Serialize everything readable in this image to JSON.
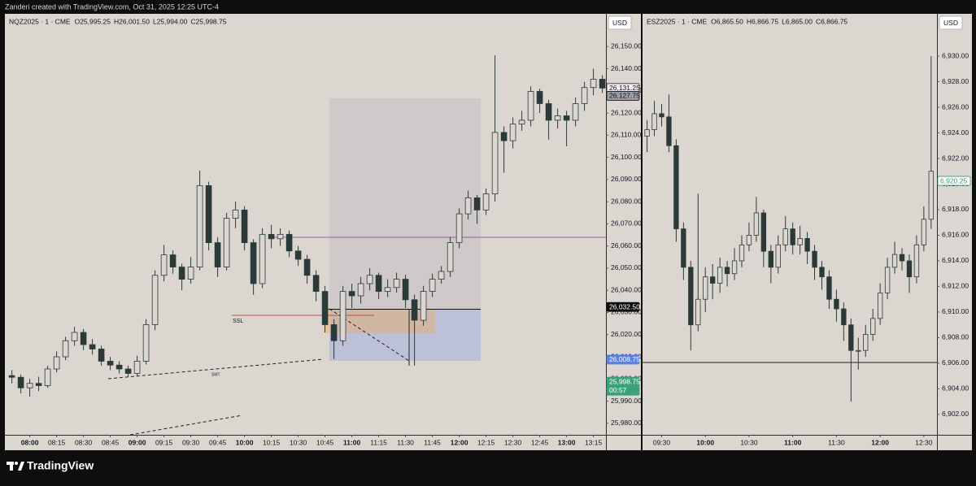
{
  "header": {
    "text": "Zanderi created with TradingView.com, Oct 31, 2025 12:25 UTC-4"
  },
  "footer": {
    "brand": "TradingView"
  },
  "chart_data": [
    {
      "type": "candlestick",
      "title": "NQZ2025 · 1 · CME",
      "ohlc_legend": [
        "O25,995.25",
        "H26,001.50",
        "L25,994.00",
        "C25,998.75"
      ],
      "currency": "USD",
      "up_color": "#dcd6d1",
      "down_color": "#2b3a39",
      "x": [
        "07:50",
        "07:55",
        "08:00",
        "08:05",
        "08:10",
        "08:15",
        "08:20",
        "08:25",
        "08:30",
        "08:35",
        "08:40",
        "08:45",
        "08:50",
        "08:55",
        "09:00",
        "09:05",
        "09:10",
        "09:15",
        "09:20",
        "09:25",
        "09:30",
        "09:35",
        "09:40",
        "09:45",
        "09:50",
        "09:55",
        "10:00",
        "10:05",
        "10:10",
        "10:15",
        "10:20",
        "10:25",
        "10:30",
        "10:35",
        "10:40",
        "10:45",
        "10:50",
        "10:55",
        "11:00",
        "11:05",
        "11:10",
        "11:15",
        "11:20",
        "11:25",
        "11:30",
        "11:35",
        "11:40",
        "11:45",
        "11:50",
        "11:55",
        "12:00",
        "12:05",
        "12:10",
        "12:15",
        "12:20",
        "12:25",
        "12:30",
        "12:35",
        "12:40",
        "12:45",
        "12:50",
        "12:55",
        "13:00",
        "13:05",
        "13:10",
        "13:15",
        "13:20"
      ],
      "open": [
        26001.5,
        26000.75,
        25996,
        25998,
        25997,
        26004.5,
        26010,
        26017.25,
        26021,
        26015.5,
        26013.5,
        26008,
        26006.25,
        26004.5,
        26002.5,
        26008,
        26024.5,
        26046.75,
        26056,
        26050.5,
        26045,
        26050.5,
        26087.25,
        26061.5,
        26050.5,
        26072.5,
        26076.25,
        26061.5,
        26043,
        26065.25,
        26063.25,
        26065.25,
        26057.75,
        26054,
        26046.75,
        26039.5,
        26024.5,
        26017.25,
        26039.5,
        26037.5,
        26043,
        26046.75,
        26039.5,
        26041.25,
        26045,
        26035.75,
        26026.5,
        26039.5,
        26045,
        26048.5,
        26061.5,
        26074.5,
        26081.75,
        26076.25,
        26083.5,
        26111.25,
        26107.5,
        26115,
        26116.75,
        26129.75,
        26124.25,
        26116.75,
        26118.75,
        26116.75,
        26124.25,
        26131.5,
        26135.25
      ],
      "high": [
        26004,
        26002,
        26000,
        26001,
        26006,
        26012.5,
        26019,
        26023.5,
        26022.5,
        26018,
        26015,
        26010,
        26008,
        26006,
        26010.5,
        26027,
        26049,
        26060.5,
        26058,
        26052,
        26055,
        26094,
        26089,
        26064,
        26075,
        26080,
        26078,
        26063,
        26068,
        26069.5,
        26068,
        26067,
        26060,
        26056,
        26049,
        26042,
        26027,
        26042,
        26043,
        26046,
        26050,
        26048,
        26045,
        26048,
        26047,
        26038,
        26042,
        26047.5,
        26051,
        26064,
        26077,
        26085,
        26083,
        26086,
        26146,
        26114,
        26118,
        26121,
        26132,
        26131,
        26126,
        26122,
        26121,
        26127,
        26134,
        26140,
        26137
      ],
      "low": [
        25998,
        25993.5,
        25992,
        25994.5,
        25996,
        26003,
        26008.5,
        26015,
        26013,
        26011,
        26006,
        26004,
        26002.5,
        26001,
        26001.5,
        26006.5,
        26022,
        26044,
        26047.5,
        26040,
        26043,
        26049,
        26058,
        26046,
        26049,
        26068,
        26058,
        26038,
        26041,
        26059,
        26060,
        26055,
        26051,
        26043,
        26035,
        26021,
        26009,
        26015,
        26032,
        26034,
        26040,
        26036,
        26037,
        26039,
        26032,
        26006,
        26024,
        26037,
        26043,
        26046,
        26059,
        26072,
        26070,
        26074,
        26080,
        26093,
        26104,
        26112,
        26114,
        26120,
        26108,
        26113,
        26105,
        26114,
        26121,
        26128,
        26129
      ],
      "close": [
        26000.75,
        25996,
        25998,
        25997,
        26004.5,
        26010,
        26017.25,
        26021,
        26015.5,
        26013.5,
        26008,
        26006.25,
        26004.5,
        26002.5,
        26008,
        26024.5,
        26046.75,
        26056,
        26050.5,
        26045,
        26050.5,
        26087.25,
        26061.5,
        26050.5,
        26072.5,
        26076.25,
        26061.5,
        26043,
        26065.25,
        26063.25,
        26065.25,
        26057.75,
        26054,
        26046.75,
        26039.5,
        26024.5,
        26017.25,
        26039.5,
        26037.5,
        26043,
        26046.75,
        26039.5,
        26041.25,
        26045,
        26035.75,
        26026.5,
        26039.5,
        26045,
        26048.5,
        26061.5,
        26074.5,
        26081.75,
        26076.25,
        26083.5,
        26111.25,
        26107.5,
        26115,
        26116.75,
        26129.75,
        26124.25,
        26116.75,
        26118.75,
        26116.75,
        26124.25,
        26131.5,
        26135.25,
        26131.25
      ],
      "xlim": [
        "07:47",
        "13:22"
      ],
      "xticks": [
        "08:00",
        "08:15",
        "08:30",
        "08:45",
        "09:00",
        "09:15",
        "09:30",
        "09:45",
        "10:00",
        "10:15",
        "10:30",
        "10:45",
        "11:00",
        "11:15",
        "11:30",
        "11:45",
        "12:00",
        "12:15",
        "12:30",
        "12:45",
        "13:00",
        "13:15"
      ],
      "ylim": [
        25974.8,
        26164.4
      ],
      "yticks": [
        {
          "value": 25980,
          "label": "25,980.00"
        },
        {
          "value": 25990,
          "label": "25,990.00"
        },
        {
          "value": 26000,
          "label": "26,000.00"
        },
        {
          "value": 26010,
          "label": "26,010.00"
        },
        {
          "value": 26020,
          "label": "26,020.00"
        },
        {
          "value": 26030,
          "label": "26,030.00"
        },
        {
          "value": 26040,
          "label": "26,040.00"
        },
        {
          "value": 26050,
          "label": "26,050.00"
        },
        {
          "value": 26060,
          "label": "26,060.00"
        },
        {
          "value": 26070,
          "label": "26,070.00"
        },
        {
          "value": 26080,
          "label": "26,080.00"
        },
        {
          "value": 26090,
          "label": "26,090.00"
        },
        {
          "value": 26100,
          "label": "26,100.00"
        },
        {
          "value": 26110,
          "label": "26,110.00"
        },
        {
          "value": 26120,
          "label": "26,120.00"
        },
        {
          "value": 26130,
          "label": "26,130.00"
        },
        {
          "value": 26140,
          "label": "26,140.00"
        },
        {
          "value": 26150,
          "label": "26,150.00"
        }
      ],
      "price_labels": [
        {
          "value": 26131.25,
          "label": "26,131.25",
          "color": "#f2f0ee",
          "text_color": "#131722"
        },
        {
          "value": 26127.75,
          "label": "26,127.75",
          "color": "#9a9ca3",
          "text_color": "#131722"
        },
        {
          "value": 26032.5,
          "label": "26,032.50",
          "color": "#0c0c0c",
          "text_color": "#ffffff"
        },
        {
          "value": 26008.75,
          "label": "26,008.75",
          "color": "#5b80e6",
          "text_color": "#ffffff"
        },
        {
          "value": 25998.75,
          "label": "25,998.75",
          "color": "#3aa17a",
          "text_color": "#ffffff",
          "countdown": "00:57"
        }
      ],
      "annotations": [
        "SSL",
        "SMT"
      ]
    },
    {
      "type": "candlestick",
      "title": "ESZ2025 · 1 · CME",
      "ohlc_legend": [
        "O6,865.50",
        "H6,866.75",
        "L6,865.00",
        "C6,866.75"
      ],
      "currency": "USD",
      "up_color": "#dcd6d1",
      "down_color": "#2b3a39",
      "x": [
        "09:20",
        "09:25",
        "09:30",
        "09:35",
        "09:40",
        "09:45",
        "09:50",
        "09:55",
        "10:00",
        "10:05",
        "10:10",
        "10:15",
        "10:20",
        "10:25",
        "10:30",
        "10:35",
        "10:40",
        "10:45",
        "10:50",
        "10:55",
        "11:00",
        "11:05",
        "11:10",
        "11:15",
        "11:20",
        "11:25",
        "11:30",
        "11:35",
        "11:40",
        "11:45",
        "11:50",
        "11:55",
        "12:00",
        "12:05",
        "12:10",
        "12:15",
        "12:20",
        "12:25",
        "12:30",
        "12:35"
      ],
      "open": [
        6923.75,
        6924.25,
        6925.5,
        6925.25,
        6923,
        6916.5,
        6913.5,
        6909,
        6911,
        6912.75,
        6912.25,
        6913.5,
        6913,
        6914,
        6915.25,
        6916,
        6917.75,
        6914.75,
        6913.5,
        6915.25,
        6916.5,
        6915.25,
        6915.75,
        6914.75,
        6913.5,
        6912.75,
        6911,
        6910.25,
        6909,
        6907,
        6907,
        6908.25,
        6909.5,
        6911.5,
        6913.5,
        6914.5,
        6914,
        6912.75,
        6915.25,
        6917.25
      ],
      "high": [
        6925,
        6926.5,
        6926.25,
        6927,
        6923.5,
        6917,
        6914,
        6919.25,
        6913.5,
        6913.75,
        6914.25,
        6914,
        6915,
        6916,
        6917,
        6919,
        6918,
        6915.25,
        6916,
        6917.5,
        6917,
        6916.75,
        6916.25,
        6915.25,
        6914,
        6913.25,
        6911.75,
        6910.75,
        6909.5,
        6908,
        6909,
        6910.25,
        6912.25,
        6914.25,
        6915.5,
        6915,
        6914.5,
        6916,
        6918.25,
        6930
      ],
      "low": [
        6922.5,
        6923.75,
        6924.5,
        6922.5,
        6915.5,
        6912.5,
        6907,
        6908.5,
        6910,
        6911,
        6911.5,
        6912,
        6912.5,
        6913.5,
        6914.75,
        6915.5,
        6913.5,
        6912.25,
        6913,
        6914.75,
        6914.5,
        6914.5,
        6913.75,
        6912.5,
        6911.75,
        6910.25,
        6909.25,
        6907.75,
        6903,
        6905.5,
        6906.5,
        6907.75,
        6909,
        6911,
        6913,
        6913.25,
        6911.5,
        6912.25,
        6914.75,
        6916.5
      ],
      "close": [
        6924.25,
        6925.5,
        6925.25,
        6923,
        6916.5,
        6913.5,
        6909,
        6911,
        6912.75,
        6912.25,
        6913.5,
        6913,
        6914,
        6915.25,
        6916,
        6917.75,
        6914.75,
        6913.5,
        6915.25,
        6916.5,
        6915.25,
        6915.75,
        6914.75,
        6913.5,
        6912.75,
        6911,
        6910.25,
        6909,
        6907,
        6907,
        6908.25,
        6909.5,
        6911.5,
        6913.5,
        6914.5,
        6914,
        6912.75,
        6915.25,
        6917.25,
        6921
      ],
      "xlim": [
        "09:18",
        "12:39"
      ],
      "xticks": [
        "09:30",
        "10:00",
        "10:30",
        "11:00",
        "11:30",
        "12:00",
        "12:30"
      ],
      "ylim": [
        6900.41,
        6933.24
      ],
      "yticks": [
        {
          "value": 6902,
          "label": "6,902.00"
        },
        {
          "value": 6904,
          "label": "6,904.00"
        },
        {
          "value": 6906,
          "label": "6,906.00"
        },
        {
          "value": 6908,
          "label": "6,908.00"
        },
        {
          "value": 6910,
          "label": "6,910.00"
        },
        {
          "value": 6912,
          "label": "6,912.00"
        },
        {
          "value": 6914,
          "label": "6,914.00"
        },
        {
          "value": 6916,
          "label": "6,916.00"
        },
        {
          "value": 6918,
          "label": "6,918.00"
        },
        {
          "value": 6920,
          "label": "6,920.00"
        },
        {
          "value": 6922,
          "label": "6,922.00"
        },
        {
          "value": 6924,
          "label": "6,924.00"
        },
        {
          "value": 6926,
          "label": "6,926.00"
        },
        {
          "value": 6928,
          "label": "6,928.00"
        },
        {
          "value": 6930,
          "label": "6,930.00"
        }
      ],
      "price_labels": [
        {
          "value": 6920.25,
          "label": "6,920.25",
          "color": "#ffffff",
          "text_color": "#2e9b6e"
        }
      ]
    }
  ]
}
